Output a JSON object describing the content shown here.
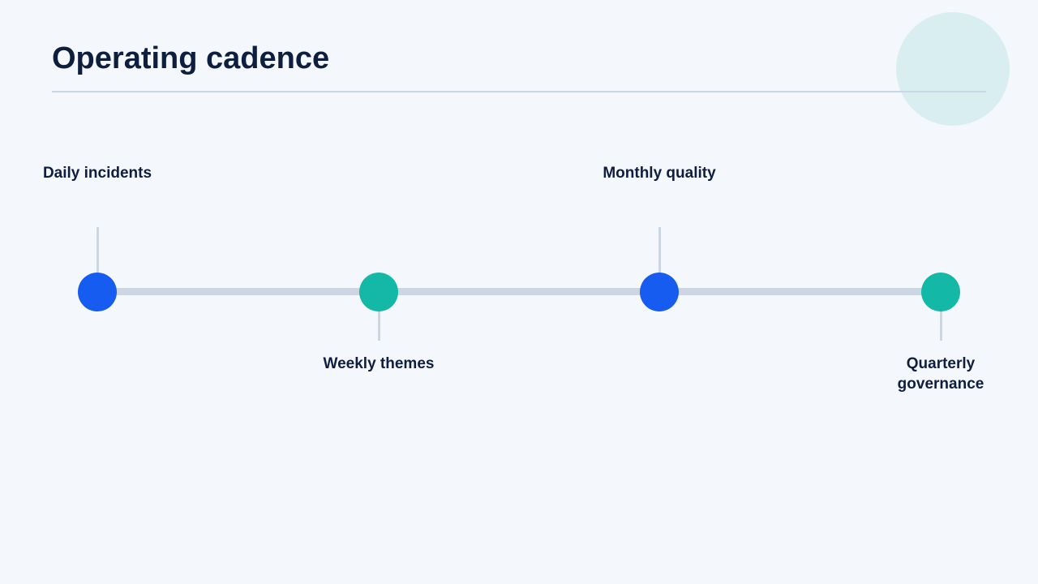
{
  "title": "Operating cadence",
  "colors": {
    "background": "#F4F7FB",
    "title": "#0E1E3F",
    "track": "#CCD6E3",
    "blue": "#175CF0",
    "teal": "#13B8A6",
    "decor": "#D8EEF0"
  },
  "timeline": {
    "milestones": [
      {
        "label": "Daily incidents",
        "position": "above",
        "color": "#175CF0"
      },
      {
        "label": "Weekly themes",
        "position": "below",
        "color": "#13B8A6"
      },
      {
        "label": "Monthly quality",
        "position": "above",
        "color": "#175CF0"
      },
      {
        "label": "Quarterly governance",
        "position": "below",
        "color": "#13B8A6"
      }
    ]
  }
}
